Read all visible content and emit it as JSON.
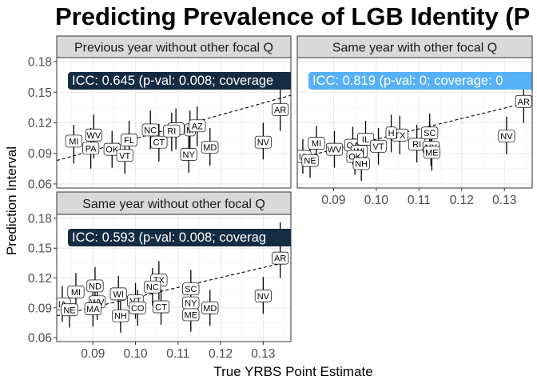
{
  "chart_data": {
    "type": "scatter",
    "title": "Predicting Prevalence of LGB Identity (P",
    "xlabel": "True YRBS Point Estimate",
    "ylabel": "Prediction Interval",
    "xlim": [
      0.0815,
      0.1365
    ],
    "ylim": [
      0.056,
      0.184
    ],
    "x_ticks": [
      "0.09",
      "0.10",
      "0.11",
      "0.12",
      "0.13"
    ],
    "x_tick_values": [
      0.09,
      0.1,
      0.11,
      0.12,
      0.13
    ],
    "y_ticks": [
      "0.06",
      "0.09",
      "0.12",
      "0.15",
      "0.18"
    ],
    "y_tick_values": [
      0.06,
      0.09,
      0.12,
      0.15,
      0.18
    ],
    "grid": true,
    "legend": "none",
    "colors": {
      "panel_strip": "#d9d9d9",
      "grid": "#ebebeb",
      "icc_dark": "#132b43",
      "icc_light": "#56b1f7",
      "text": "#1a1a1a",
      "tick_text": "#4d4d4d"
    },
    "facets": [
      {
        "label": "Previous year without other focal Q",
        "icc_text": "ICC: 0.645 (p-val: 0.008; coverage",
        "icc_color": "#132b43",
        "fit_line": [
          [
            0.0815,
            0.083
          ],
          [
            0.1365,
            0.147
          ]
        ],
        "points": [
          {
            "s": "MI",
            "x": 0.0855,
            "y": 0.102,
            "lo": 0.08,
            "hi": 0.118
          },
          {
            "s": "WV",
            "x": 0.0902,
            "y": 0.108,
            "lo": 0.085,
            "hi": 0.128
          },
          {
            "s": "PA",
            "x": 0.0895,
            "y": 0.095,
            "lo": 0.075,
            "hi": 0.115
          },
          {
            "s": "OK",
            "x": 0.0945,
            "y": 0.094,
            "lo": 0.076,
            "hi": 0.112
          },
          {
            "s": "FL",
            "x": 0.0985,
            "y": 0.103,
            "lo": 0.085,
            "hi": 0.122
          },
          {
            "s": "VT",
            "x": 0.0975,
            "y": 0.088,
            "lo": 0.07,
            "hi": 0.107
          },
          {
            "s": "NC",
            "x": 0.1035,
            "y": 0.113,
            "lo": 0.094,
            "hi": 0.132
          },
          {
            "s": "CT",
            "x": 0.1055,
            "y": 0.101,
            "lo": 0.082,
            "hi": 0.119
          },
          {
            "s": "HI",
            "x": 0.1095,
            "y": 0.114,
            "lo": 0.094,
            "hi": 0.134
          },
          {
            "s": "RI",
            "x": 0.1085,
            "y": 0.112,
            "lo": 0.092,
            "hi": 0.13
          },
          {
            "s": "M",
            "x": 0.1128,
            "y": 0.113,
            "lo": 0.094,
            "hi": 0.132
          },
          {
            "s": "AZ",
            "x": 0.1145,
            "y": 0.117,
            "lo": 0.097,
            "hi": 0.136
          },
          {
            "s": "NY",
            "x": 0.1125,
            "y": 0.089,
            "lo": 0.071,
            "hi": 0.107
          },
          {
            "s": "MD",
            "x": 0.1175,
            "y": 0.096,
            "lo": 0.078,
            "hi": 0.115
          },
          {
            "s": "NV",
            "x": 0.13,
            "y": 0.101,
            "lo": 0.084,
            "hi": 0.12
          },
          {
            "s": "AR",
            "x": 0.134,
            "y": 0.133,
            "lo": 0.112,
            "hi": 0.16
          }
        ]
      },
      {
        "label": "Same year with other focal Q",
        "icc_text": "ICC: 0.819 (p-val: 0; coverage: 0",
        "icc_color": "#56b1f7",
        "fit_line": [
          [
            0.0815,
            0.085
          ],
          [
            0.1365,
            0.141
          ]
        ],
        "points": [
          {
            "s": "IA",
            "x": 0.0828,
            "y": 0.087,
            "lo": 0.07,
            "hi": 0.104
          },
          {
            "s": "NE",
            "x": 0.0845,
            "y": 0.083,
            "lo": 0.066,
            "hi": 0.101
          },
          {
            "s": "MI",
            "x": 0.086,
            "y": 0.1,
            "lo": 0.082,
            "hi": 0.117
          },
          {
            "s": "WV",
            "x": 0.0902,
            "y": 0.094,
            "lo": 0.076,
            "hi": 0.112
          },
          {
            "s": "OA",
            "x": 0.0945,
            "y": 0.098,
            "lo": 0.079,
            "hi": 0.116
          },
          {
            "s": "IL",
            "x": 0.0975,
            "y": 0.104,
            "lo": 0.085,
            "hi": 0.122
          },
          {
            "s": "WI",
            "x": 0.096,
            "y": 0.092,
            "lo": 0.074,
            "hi": 0.11
          },
          {
            "s": "OK",
            "x": 0.095,
            "y": 0.087,
            "lo": 0.069,
            "hi": 0.105
          },
          {
            "s": "NH",
            "x": 0.0965,
            "y": 0.08,
            "lo": 0.063,
            "hi": 0.098
          },
          {
            "s": "VT",
            "x": 0.1005,
            "y": 0.097,
            "lo": 0.079,
            "hi": 0.115
          },
          {
            "s": "TX",
            "x": 0.1055,
            "y": 0.108,
            "lo": 0.089,
            "hi": 0.127
          },
          {
            "s": "H",
            "x": 0.1035,
            "y": 0.11,
            "lo": 0.091,
            "hi": 0.128
          },
          {
            "s": "RI",
            "x": 0.1095,
            "y": 0.099,
            "lo": 0.081,
            "hi": 0.118
          },
          {
            "s": "SC",
            "x": 0.1125,
            "y": 0.11,
            "lo": 0.091,
            "hi": 0.129
          },
          {
            "s": "NY",
            "x": 0.1128,
            "y": 0.096,
            "lo": 0.078,
            "hi": 0.114
          },
          {
            "s": "ME",
            "x": 0.113,
            "y": 0.091,
            "lo": 0.073,
            "hi": 0.109
          },
          {
            "s": "NV",
            "x": 0.1305,
            "y": 0.107,
            "lo": 0.089,
            "hi": 0.126
          },
          {
            "s": "AR",
            "x": 0.1345,
            "y": 0.141,
            "lo": 0.12,
            "hi": 0.168
          }
        ]
      },
      {
        "label": "Same year without other focal Q",
        "icc_text": "ICC: 0.593 (p-val: 0.008; coverag",
        "icc_color": "#132b43",
        "fit_line": [
          [
            0.0815,
            0.082
          ],
          [
            0.1365,
            0.137
          ]
        ],
        "points": [
          {
            "s": "IA",
            "x": 0.0828,
            "y": 0.094,
            "lo": 0.076,
            "hi": 0.112
          },
          {
            "s": "NE",
            "x": 0.0845,
            "y": 0.088,
            "lo": 0.07,
            "hi": 0.106
          },
          {
            "s": "MI",
            "x": 0.086,
            "y": 0.106,
            "lo": 0.087,
            "hi": 0.125
          },
          {
            "s": "ND",
            "x": 0.0905,
            "y": 0.112,
            "lo": 0.093,
            "hi": 0.131
          },
          {
            "s": "WV",
            "x": 0.091,
            "y": 0.096,
            "lo": 0.078,
            "hi": 0.114
          },
          {
            "s": "MA",
            "x": 0.09,
            "y": 0.089,
            "lo": 0.071,
            "hi": 0.107
          },
          {
            "s": "WI",
            "x": 0.096,
            "y": 0.104,
            "lo": 0.085,
            "hi": 0.122
          },
          {
            "s": "NH",
            "x": 0.0965,
            "y": 0.082,
            "lo": 0.065,
            "hi": 0.1
          },
          {
            "s": "VT",
            "x": 0.1,
            "y": 0.097,
            "lo": 0.079,
            "hi": 0.115
          },
          {
            "s": "CO",
            "x": 0.1005,
            "y": 0.09,
            "lo": 0.072,
            "hi": 0.108
          },
          {
            "s": "TX",
            "x": 0.1055,
            "y": 0.118,
            "lo": 0.098,
            "hi": 0.137
          },
          {
            "s": "NC",
            "x": 0.104,
            "y": 0.111,
            "lo": 0.092,
            "hi": 0.13
          },
          {
            "s": "CT",
            "x": 0.106,
            "y": 0.091,
            "lo": 0.073,
            "hi": 0.109
          },
          {
            "s": "SC",
            "x": 0.113,
            "y": 0.109,
            "lo": 0.09,
            "hi": 0.128
          },
          {
            "s": "NY",
            "x": 0.113,
            "y": 0.095,
            "lo": 0.077,
            "hi": 0.113
          },
          {
            "s": "ME",
            "x": 0.113,
            "y": 0.083,
            "lo": 0.066,
            "hi": 0.101
          },
          {
            "s": "MD",
            "x": 0.1175,
            "y": 0.09,
            "lo": 0.072,
            "hi": 0.108
          },
          {
            "s": "NV",
            "x": 0.13,
            "y": 0.102,
            "lo": 0.084,
            "hi": 0.121
          },
          {
            "s": "AR",
            "x": 0.134,
            "y": 0.14,
            "lo": 0.12,
            "hi": 0.176
          }
        ]
      }
    ]
  }
}
